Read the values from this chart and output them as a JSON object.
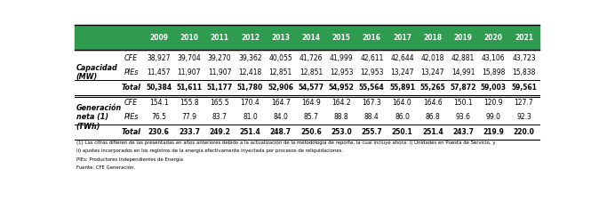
{
  "header_bg": "#2e9b4e",
  "header_text_color": "#ffffff",
  "years": [
    "2009",
    "2010",
    "2011",
    "2012",
    "2013",
    "2014",
    "2015",
    "2016",
    "2017",
    "2018",
    "2019",
    "2020",
    "2021"
  ],
  "capacidad": {
    "CFE": [
      38927,
      39704,
      39270,
      39362,
      40055,
      41726,
      41999,
      42611,
      42644,
      42018,
      42881,
      43106,
      43723
    ],
    "PIEs": [
      11457,
      11907,
      11907,
      12418,
      12851,
      12851,
      12953,
      12953,
      13247,
      13247,
      14991,
      15898,
      15838
    ],
    "Total": [
      50384,
      51611,
      51177,
      51780,
      52906,
      54577,
      54952,
      55564,
      55891,
      55265,
      57872,
      59003,
      59561
    ]
  },
  "generacion": {
    "CFE": [
      154.1,
      155.8,
      165.5,
      170.4,
      164.7,
      164.9,
      164.2,
      167.3,
      164.0,
      164.6,
      150.1,
      120.9,
      127.7
    ],
    "PIEs": [
      76.5,
      77.9,
      83.7,
      81.0,
      84.0,
      85.7,
      88.8,
      88.4,
      86.0,
      86.8,
      93.6,
      99.0,
      92.3
    ],
    "Total": [
      230.6,
      233.7,
      249.2,
      251.4,
      248.7,
      250.6,
      253.0,
      255.7,
      250.1,
      251.4,
      243.7,
      219.9,
      220.0
    ]
  },
  "footnote1": "(1) Las cifras difieren de las presentadas en años anteriores debido a la actualización de la metodología de reporte, la cual incluye ahora: i) Unidades en Puesta de Servicio, y",
  "footnote2": "ii) ajustes incorporados en los registros de la energía efectivamente inyectada por procesos de reliquidaciones.",
  "footnote3": "PIEs: Productores Independientes de Energía",
  "footnote4": "Fuente: CFE Generación."
}
